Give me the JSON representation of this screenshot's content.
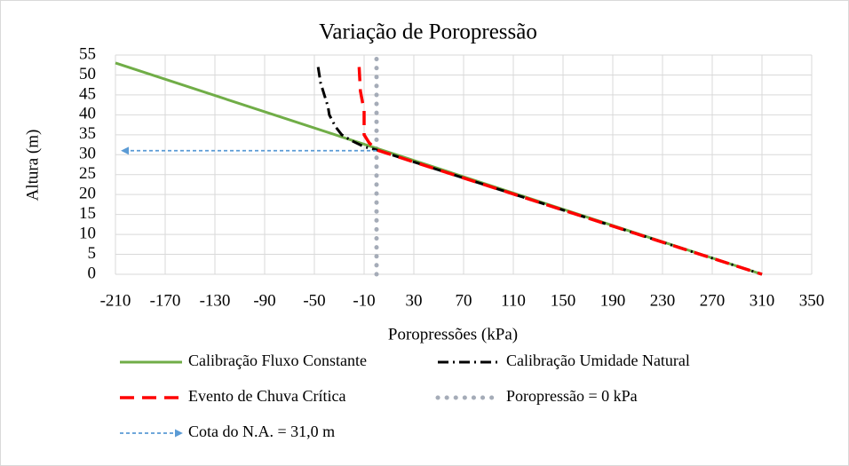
{
  "chart_data": {
    "type": "line",
    "title": "Variação de Poropressão",
    "xlabel": "Poropressões (kPa)",
    "ylabel": "Altura (m)",
    "xlim": [
      -210,
      350
    ],
    "xticks": [
      -210,
      -170,
      -130,
      -90,
      -50,
      -10,
      30,
      70,
      110,
      150,
      190,
      230,
      270,
      310,
      350
    ],
    "ylim": [
      0,
      55
    ],
    "yticks": [
      0,
      5,
      10,
      15,
      20,
      25,
      30,
      35,
      40,
      45,
      50,
      55
    ],
    "grid": true,
    "series": [
      {
        "name": "Calibração Fluxo Constante",
        "color": "#70ad47",
        "x": [
          -210,
          0,
          310
        ],
        "values": [
          53,
          31.6,
          0
        ]
      },
      {
        "name": "Calibração Umidade Natural",
        "color": "#000000",
        "x": [
          -47,
          -45,
          -42,
          -39,
          -38,
          -33,
          -28,
          -20,
          -10,
          0,
          310
        ],
        "values": [
          52,
          48,
          45,
          42,
          40,
          37,
          35,
          33.5,
          32,
          31.2,
          0
        ]
      },
      {
        "name": "Evento de Chuva Crítica",
        "color": "#ff0000",
        "x": [
          -14,
          -13,
          -10,
          -10,
          -6,
          0,
          310
        ],
        "values": [
          52,
          46,
          41,
          35,
          33,
          31.2,
          0
        ]
      },
      {
        "name": "Poropressão = 0 kPa",
        "color": "#a5acb8",
        "x": [
          0,
          0
        ],
        "values": [
          0,
          55
        ]
      },
      {
        "name": "Cota do N.A. = 31,0 m",
        "color": "#5b9bd5",
        "x": [
          0,
          -205
        ],
        "values": [
          31,
          31
        ]
      }
    ]
  }
}
